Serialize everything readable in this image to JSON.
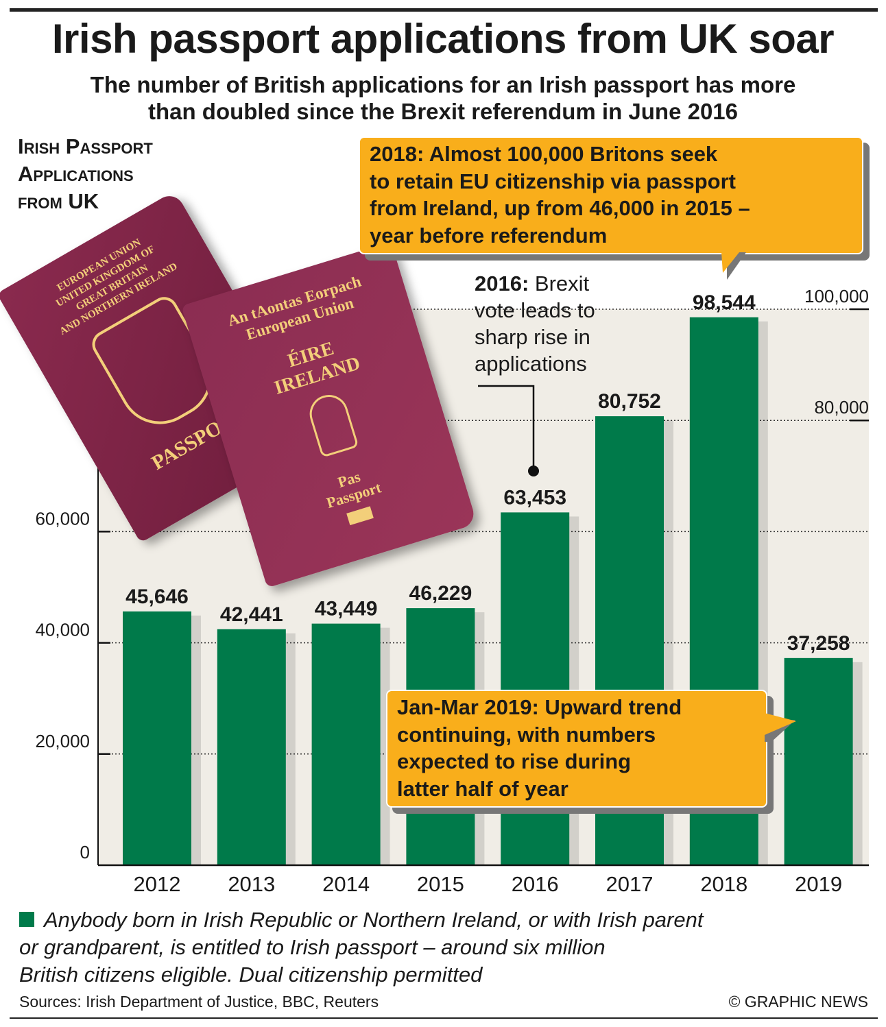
{
  "title": "Irish passport applications from UK soar",
  "subtitle_line1": "The number of British applications for an Irish passport has more",
  "subtitle_line2": "than doubled since the Brexit referendum in June 2016",
  "chart_heading": [
    "Irish Passport",
    "Applications",
    "from UK"
  ],
  "callout_2018": [
    "2018: Almost 100,000 Britons seek",
    "to retain EU citizenship via passport",
    "from Ireland, up from 46,000 in 2015 –",
    "year before referendum"
  ],
  "annotation_2016": {
    "bold": "2016:",
    "lines": [
      " Brexit",
      "vote leads to",
      "sharp rise in",
      "applications"
    ]
  },
  "callout_2019": [
    "Jan-Mar 2019: Upward trend",
    "continuing, with numbers",
    "expected to rise during",
    "latter half of year"
  ],
  "passport_uk": {
    "lines": [
      "EUROPEAN UNION",
      "UNITED KINGDOM OF",
      "GREAT BRITAIN",
      "AND NORTHERN IRELAND"
    ],
    "bottom": "PASSPORT"
  },
  "passport_ie": {
    "lines": [
      "An tAontas Eorpach",
      "European Union"
    ],
    "country": [
      "ÉIRE",
      "IRELAND"
    ],
    "bottom": [
      "Pas",
      "Passport"
    ]
  },
  "chart_data": {
    "type": "bar",
    "title": "Irish Passport Applications from UK",
    "categories": [
      "2012",
      "2013",
      "2014",
      "2015",
      "2016",
      "2017",
      "2018",
      "2019"
    ],
    "values": [
      45646,
      42441,
      43449,
      46229,
      63453,
      80752,
      98544,
      37258
    ],
    "value_labels": [
      "45,646",
      "42,441",
      "43,449",
      "46,229",
      "63,453",
      "80,752",
      "98,544",
      "37,258"
    ],
    "yticks": [
      0,
      20000,
      40000,
      60000,
      80000,
      100000
    ],
    "ytick_labels": [
      "0",
      "20,000",
      "40,000",
      "60,000",
      "80,000",
      "100,000"
    ],
    "ylim": [
      0,
      100000
    ],
    "xlabel": "",
    "ylabel": "",
    "grid": true,
    "bar_color": "#007a4a",
    "note": "2019 = Jan-Mar only"
  },
  "footnote": [
    "Anybody born in Irish Republic or Northern Ireland, or with Irish parent",
    "or grandparent, is entitled to Irish passport – around six million",
    "British citizens eligible. Dual citizenship permitted"
  ],
  "sources": "Sources: Irish Department of Justice, BBC, Reuters",
  "credit": "© GRAPHIC NEWS",
  "colors": {
    "bar": "#007a4a",
    "callout": "#f9ae1b",
    "plot_bg": "#f0ede6",
    "passport": "#7f2447"
  }
}
